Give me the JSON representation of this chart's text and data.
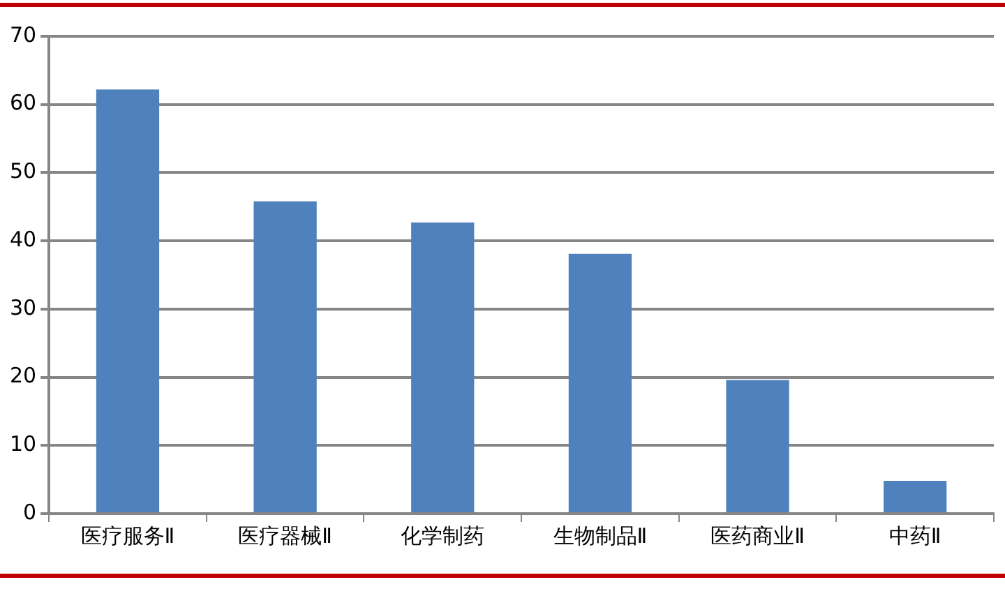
{
  "chart_data": {
    "type": "bar",
    "categories": [
      "医疗服务Ⅱ",
      "医疗器械Ⅱ",
      "化学制药",
      "生物制品Ⅱ",
      "医药商业Ⅱ",
      "中药Ⅱ"
    ],
    "values": [
      62.2,
      45.8,
      42.7,
      38.1,
      19.6,
      4.8
    ],
    "color": "#4f81bd",
    "ylim": [
      0,
      70
    ],
    "yticks": [
      0,
      10,
      20,
      30,
      40,
      50,
      60,
      70
    ],
    "grid": "y"
  }
}
